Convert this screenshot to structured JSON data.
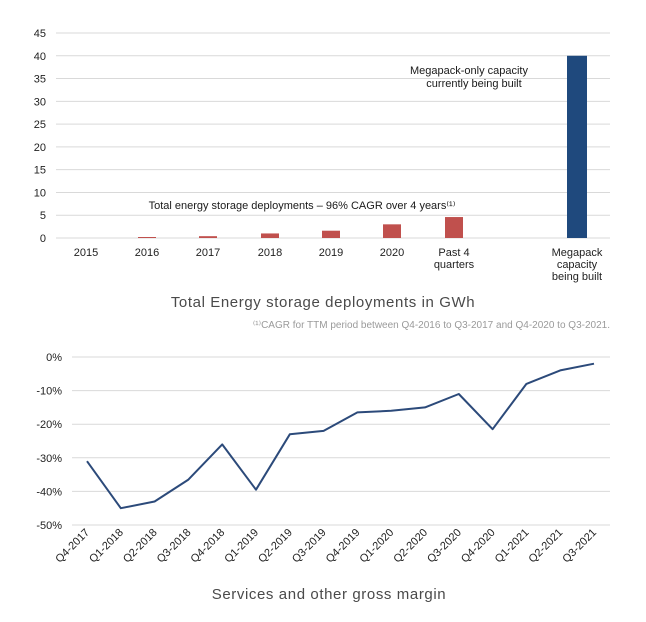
{
  "chart_data": [
    {
      "type": "bar",
      "title": "Total Energy storage deployments in GWh",
      "footnote": "⁽¹⁾CAGR for TTM period between Q4-2016 to Q3-2017 and Q4-2020 to Q3-2021.",
      "categories": [
        "2015",
        "2016",
        "2017",
        "2018",
        "2019",
        "2020",
        "Past 4 quarters",
        "Megapack capacity being built"
      ],
      "values": [
        0.0,
        0.2,
        0.4,
        1.0,
        1.6,
        3.0,
        4.6,
        40
      ],
      "bar_colors": [
        "#c0504d",
        "#c0504d",
        "#c0504d",
        "#c0504d",
        "#c0504d",
        "#c0504d",
        "#c0504d",
        "#1f497d"
      ],
      "ylim": [
        0,
        45
      ],
      "yticks": [
        0,
        5,
        10,
        15,
        20,
        25,
        30,
        35,
        40,
        45
      ],
      "annotations": {
        "cagr": "Total energy storage deployments – 96% CAGR over 4 years⁽¹⁾",
        "megapack_line1": "Megapack-only capacity",
        "megapack_line2": "currently being built"
      }
    },
    {
      "type": "line",
      "title": "Services and other gross margin",
      "categories": [
        "Q4-2017",
        "Q1-2018",
        "Q2-2018",
        "Q3-2018",
        "Q4-2018",
        "Q1-2019",
        "Q2-2019",
        "Q3-2019",
        "Q4-2019",
        "Q1-2020",
        "Q2-2020",
        "Q3-2020",
        "Q4-2020",
        "Q1-2021",
        "Q2-2021",
        "Q3-2021"
      ],
      "values": [
        -31,
        -45,
        -43,
        -36.5,
        -26,
        -39.5,
        -23,
        -22,
        -16.5,
        -16,
        -15,
        -11,
        -21.5,
        -8,
        -4,
        -2
      ],
      "line_color": "#2c4a7a",
      "ylim": [
        -50,
        0
      ],
      "yticks": [
        0,
        -10,
        -20,
        -30,
        -40,
        -50
      ],
      "ytick_labels": [
        "0%",
        "-10%",
        "-20%",
        "-30%",
        "-40%",
        "-50%"
      ]
    }
  ]
}
